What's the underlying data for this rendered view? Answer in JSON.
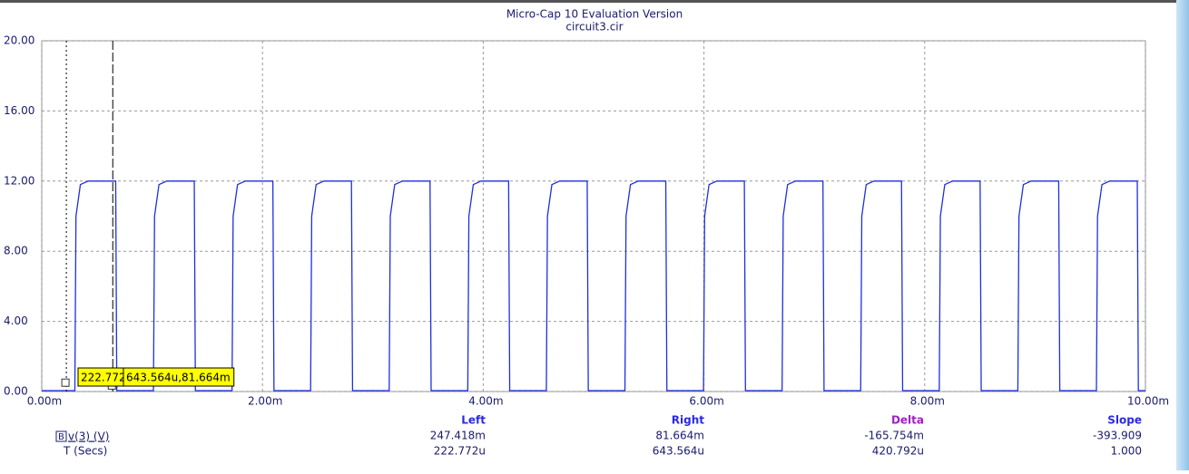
{
  "chart_data": {
    "type": "line",
    "title": "Micro-Cap 10 Evaluation Version",
    "subtitle": "circuit3.cir",
    "x": [
      0,
      0.3,
      0.31,
      0.35,
      0.42,
      0.67,
      0.68,
      1.012,
      1.022,
      1.062,
      1.132,
      1.382,
      1.392,
      1.724,
      1.734,
      1.774,
      1.844,
      2.094,
      2.104,
      2.436,
      2.446,
      2.486,
      2.556,
      2.806,
      2.816,
      3.148,
      3.158,
      3.198,
      3.268,
      3.518,
      3.528,
      3.86,
      3.87,
      3.91,
      3.98,
      4.23,
      4.24,
      4.572,
      4.582,
      4.622,
      4.692,
      4.942,
      4.952,
      5.284,
      5.294,
      5.334,
      5.404,
      5.654,
      5.664,
      5.996,
      6.006,
      6.046,
      6.116,
      6.366,
      6.376,
      6.708,
      6.718,
      6.758,
      6.828,
      7.078,
      7.088,
      7.42,
      7.43,
      7.47,
      7.54,
      7.79,
      7.8,
      8.132,
      8.142,
      8.182,
      8.252,
      8.502,
      8.512,
      8.844,
      8.854,
      8.894,
      8.964,
      9.214,
      9.224,
      9.556,
      9.566,
      9.606,
      9.676,
      9.926,
      9.936,
      10
    ],
    "series": [
      {
        "name": "v(3) (V)",
        "color": "#1f2fe0",
        "values": [
          0.05,
          0.05,
          10,
          11.8,
          12,
          12,
          0.05,
          0.05,
          10,
          11.8,
          12,
          12,
          0.05,
          0.05,
          10,
          11.8,
          12,
          12,
          0.05,
          0.05,
          10,
          11.8,
          12,
          12,
          0.05,
          0.05,
          10,
          11.8,
          12,
          12,
          0.05,
          0.05,
          10,
          11.8,
          12,
          12,
          0.05,
          0.05,
          10,
          11.8,
          12,
          12,
          0.05,
          0.05,
          10,
          11.8,
          12,
          12,
          0.05,
          0.05,
          10,
          11.8,
          12,
          12,
          0.05,
          0.05,
          10,
          11.8,
          12,
          12,
          0.05,
          0.05,
          10,
          11.8,
          12,
          12,
          0.05,
          0.05,
          10,
          11.8,
          12,
          12,
          0.05,
          0.05,
          10,
          11.8,
          12,
          12,
          0.05,
          0.05,
          10,
          11.8,
          12,
          12,
          0.05,
          0.05
        ]
      }
    ],
    "xlim": [
      0,
      10
    ],
    "ylim": [
      0,
      20
    ],
    "xticks": [
      {
        "value": 0,
        "label": "0.00m"
      },
      {
        "value": 2,
        "label": "2.00m"
      },
      {
        "value": 4,
        "label": "4.00m"
      },
      {
        "value": 6,
        "label": "6.00m"
      },
      {
        "value": 8,
        "label": "8.00m"
      },
      {
        "value": 10,
        "label": "10.00m"
      }
    ],
    "yticks": [
      {
        "value": 0,
        "label": "0.00"
      },
      {
        "value": 4,
        "label": "4.00"
      },
      {
        "value": 8,
        "label": "8.00"
      },
      {
        "value": 12,
        "label": "12.00"
      },
      {
        "value": 16,
        "label": "16.00"
      },
      {
        "value": 20,
        "label": "20.00"
      }
    ],
    "grid": true,
    "cursors": [
      {
        "x": 0.222772,
        "y": 0.247418,
        "label": "222.772u,247.418m"
      },
      {
        "x": 0.643564,
        "y": 0.081664,
        "label": "643.564u,81.664m"
      }
    ],
    "readout": {
      "columns": [
        "Left",
        "Right",
        "Delta",
        "Slope"
      ],
      "row_label": "T (Secs)",
      "rows": [
        [
          "247.418m",
          "81.664m",
          "-165.754m",
          "-393.909"
        ],
        [
          "222.772u",
          "643.564u",
          "420.792u",
          "1.000"
        ]
      ]
    }
  }
}
